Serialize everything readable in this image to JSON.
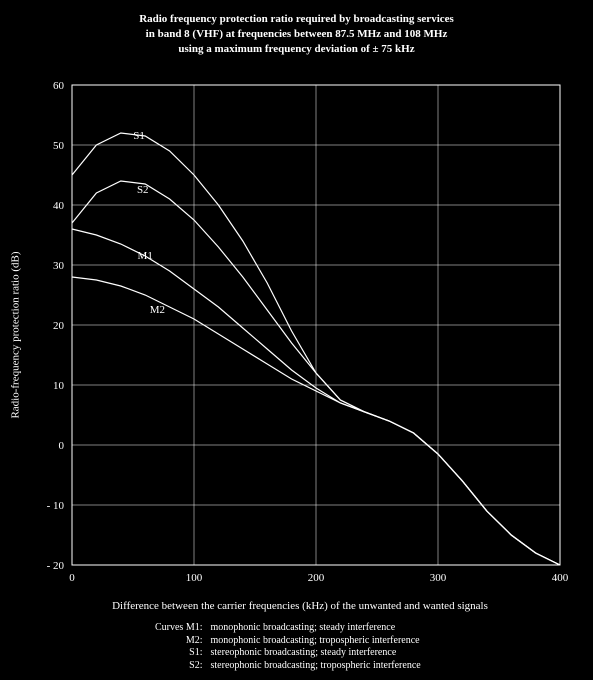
{
  "title": {
    "line1": "Radio frequency protection ratio required by broadcasting services",
    "line2": "in band 8 (VHF) at frequencies between 87.5 MHz and 108 MHz",
    "line3": "using a maximum frequency deviation of ± 75 kHz"
  },
  "chart": {
    "type": "line",
    "background_color": "#000000",
    "axis_color": "#ffffff",
    "grid_color": "#ffffff",
    "line_color": "#ffffff",
    "line_width": 1.2,
    "tick_fontsize": 11,
    "label_fontsize": 11,
    "xlabel": "Difference between the carrier frequencies (kHz) of the unwanted and wanted signals",
    "ylabel": "Radio-frequency protection ratio (dB)",
    "xlim": [
      0,
      400
    ],
    "ylim": [
      -20,
      60
    ],
    "xtick_step": 100,
    "ytick_step": 10,
    "xticks": [
      0,
      100,
      200,
      300,
      400
    ],
    "yticks": [
      -20,
      -10,
      0,
      10,
      20,
      30,
      40,
      50,
      60
    ],
    "ytick_labels": [
      "- 20",
      "- 10",
      "0",
      "10",
      "20",
      "30",
      "40",
      "50",
      "60"
    ],
    "series": [
      {
        "id": "S1",
        "label": "S1",
        "label_xy": [
          55,
          51
        ],
        "points": [
          [
            0,
            45
          ],
          [
            20,
            50
          ],
          [
            40,
            52
          ],
          [
            60,
            51.5
          ],
          [
            80,
            49
          ],
          [
            100,
            45
          ],
          [
            120,
            40
          ],
          [
            140,
            34
          ],
          [
            160,
            27
          ],
          [
            180,
            19
          ],
          [
            200,
            12
          ],
          [
            220,
            7.5
          ],
          [
            240,
            5.5
          ],
          [
            260,
            4
          ],
          [
            280,
            2
          ],
          [
            300,
            -1.5
          ],
          [
            320,
            -6
          ],
          [
            340,
            -11
          ],
          [
            360,
            -15
          ],
          [
            380,
            -18
          ],
          [
            400,
            -20
          ]
        ]
      },
      {
        "id": "S2",
        "label": "S2",
        "label_xy": [
          58,
          42
        ],
        "points": [
          [
            0,
            37
          ],
          [
            20,
            42
          ],
          [
            40,
            44
          ],
          [
            60,
            43.5
          ],
          [
            80,
            41
          ],
          [
            100,
            37.5
          ],
          [
            120,
            33
          ],
          [
            140,
            28
          ],
          [
            160,
            22.5
          ],
          [
            180,
            17
          ],
          [
            200,
            12
          ],
          [
            220,
            7.5
          ],
          [
            240,
            5.5
          ],
          [
            260,
            4
          ],
          [
            280,
            2
          ],
          [
            300,
            -1.5
          ],
          [
            320,
            -6
          ],
          [
            340,
            -11
          ],
          [
            360,
            -15
          ],
          [
            380,
            -18
          ],
          [
            400,
            -20
          ]
        ]
      },
      {
        "id": "M1",
        "label": "M1",
        "label_xy": [
          60,
          31
        ],
        "points": [
          [
            0,
            36
          ],
          [
            20,
            35
          ],
          [
            40,
            33.5
          ],
          [
            60,
            31.5
          ],
          [
            80,
            29
          ],
          [
            100,
            26
          ],
          [
            120,
            23
          ],
          [
            140,
            19.5
          ],
          [
            160,
            16
          ],
          [
            180,
            12.5
          ],
          [
            200,
            9.5
          ],
          [
            220,
            7
          ],
          [
            240,
            5.5
          ],
          [
            260,
            4
          ],
          [
            280,
            2
          ],
          [
            300,
            -1.5
          ],
          [
            320,
            -6
          ],
          [
            340,
            -11
          ],
          [
            360,
            -15
          ],
          [
            380,
            -18
          ],
          [
            400,
            -20
          ]
        ]
      },
      {
        "id": "M2",
        "label": "M2",
        "label_xy": [
          70,
          22
        ],
        "points": [
          [
            0,
            28
          ],
          [
            20,
            27.5
          ],
          [
            40,
            26.5
          ],
          [
            60,
            25
          ],
          [
            80,
            23
          ],
          [
            100,
            21
          ],
          [
            120,
            18.5
          ],
          [
            140,
            16
          ],
          [
            160,
            13.5
          ],
          [
            180,
            11
          ],
          [
            200,
            9
          ],
          [
            220,
            7
          ],
          [
            240,
            5.5
          ],
          [
            260,
            4
          ],
          [
            280,
            2
          ],
          [
            300,
            -1.5
          ],
          [
            320,
            -6
          ],
          [
            340,
            -11
          ],
          [
            360,
            -15
          ],
          [
            380,
            -18
          ],
          [
            400,
            -20
          ]
        ]
      }
    ]
  },
  "legend": {
    "heading": "Curves",
    "rows": [
      {
        "key": "M1:",
        "desc": "monophonic broadcasting; steady interference"
      },
      {
        "key": "M2:",
        "desc": "monophonic broadcasting; tropospheric interference"
      },
      {
        "key": "S1:",
        "desc": "stereophonic broadcasting; steady interference"
      },
      {
        "key": "S2:",
        "desc": "stereophonic broadcasting; tropospheric interference"
      }
    ]
  }
}
